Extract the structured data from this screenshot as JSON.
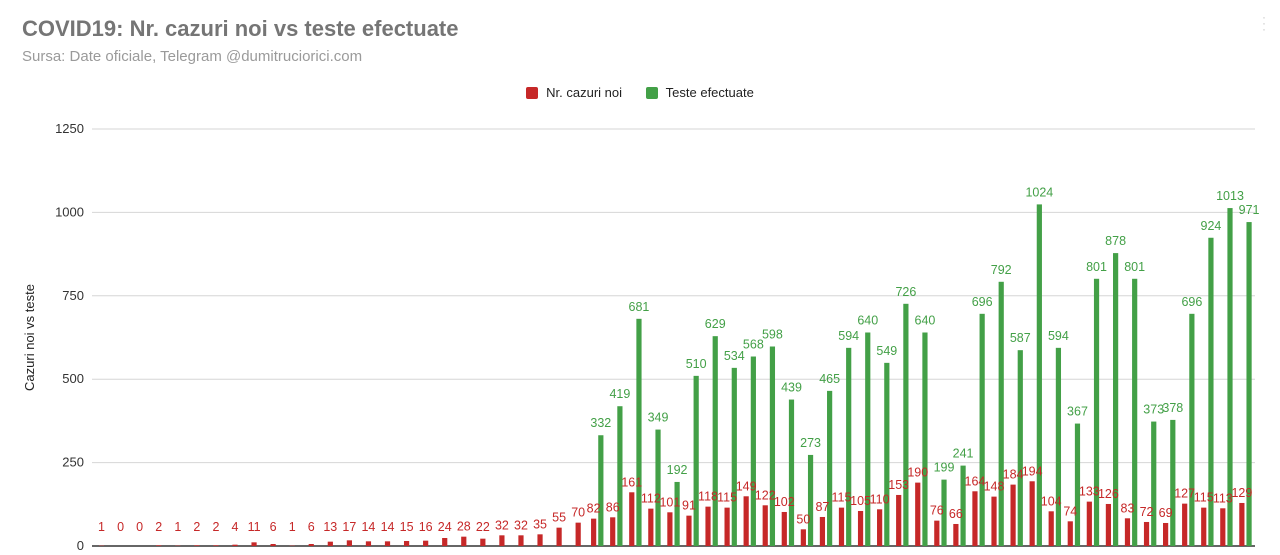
{
  "chart_data": {
    "type": "bar",
    "title": "COVID19: Nr. cazuri noi vs teste efectuate",
    "subtitle": "Sursa: Date oficiale, Telegram @dumitruciorici.com",
    "ylabel": "Cazuri noi vs teste",
    "xlabel": "",
    "ylim": [
      0,
      1250
    ],
    "yticks": [
      0,
      250,
      500,
      750,
      1000,
      1250
    ],
    "grid": true,
    "legend_position": "top-center",
    "series": [
      {
        "name": "Nr. cazuri noi",
        "color": "#c62828",
        "values": [
          1,
          0,
          0,
          2,
          1,
          2,
          2,
          4,
          11,
          6,
          1,
          6,
          13,
          17,
          14,
          14,
          15,
          16,
          24,
          28,
          22,
          32,
          32,
          35,
          55,
          70,
          82,
          86,
          161,
          112,
          101,
          91,
          118,
          115,
          149,
          122,
          102,
          50,
          87,
          115,
          105,
          110,
          153,
          190,
          76,
          66,
          164,
          148,
          184,
          194,
          104,
          74,
          133,
          126,
          83,
          72,
          69,
          127,
          115,
          113,
          129
        ]
      },
      {
        "name": "Teste efectuate",
        "color": "#43a047",
        "values": [
          null,
          null,
          null,
          null,
          null,
          null,
          null,
          null,
          null,
          null,
          null,
          null,
          null,
          null,
          null,
          null,
          null,
          null,
          null,
          null,
          null,
          null,
          null,
          null,
          null,
          null,
          332,
          419,
          681,
          349,
          192,
          510,
          629,
          534,
          568,
          598,
          439,
          273,
          465,
          594,
          640,
          549,
          726,
          640,
          199,
          241,
          696,
          792,
          587,
          1024,
          594,
          367,
          801,
          878,
          801,
          373,
          378,
          696,
          924,
          1013,
          971
        ]
      }
    ]
  }
}
